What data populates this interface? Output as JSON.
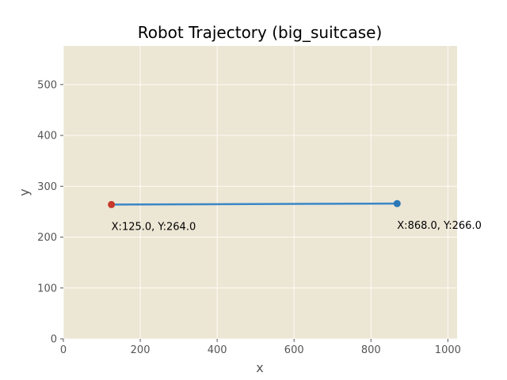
{
  "chart_data": {
    "type": "line",
    "title": "Robot Trajectory (big_suitcase)",
    "xlabel": "x",
    "ylabel": "y",
    "xlim": [
      0,
      1024
    ],
    "ylim": [
      0,
      576
    ],
    "xticks": [
      0,
      200,
      400,
      600,
      800,
      1000
    ],
    "yticks": [
      0,
      100,
      200,
      300,
      400,
      500
    ],
    "grid": true,
    "series": [
      {
        "name": "trajectory",
        "x": [
          125.0,
          868.0
        ],
        "y": [
          264.0,
          266.0
        ]
      }
    ],
    "points": [
      {
        "name": "start",
        "x": 125.0,
        "y": 264.0,
        "label": "X:125.0, Y:264.0"
      },
      {
        "name": "end",
        "x": 868.0,
        "y": 266.0,
        "label": "X:868.0, Y:266.0"
      }
    ]
  },
  "colors": {
    "plot_background": "#ece6d4",
    "grid": "#fdfbf6",
    "line": "#3a87c6",
    "start_marker": "#c6392b",
    "end_marker": "#2a78b8",
    "axis_text": "#555555"
  }
}
